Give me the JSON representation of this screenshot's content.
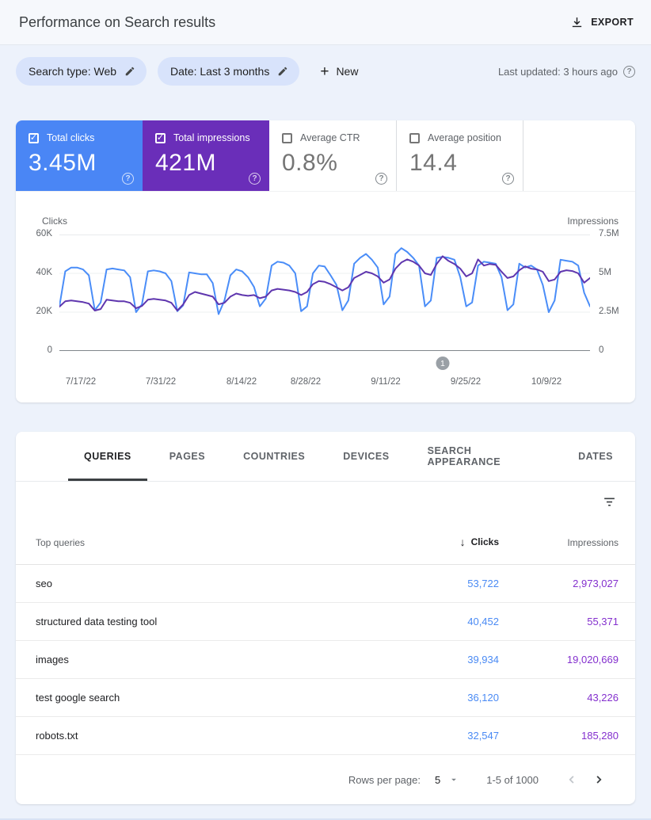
{
  "header": {
    "title": "Performance on Search results",
    "export_label": "EXPORT"
  },
  "filters": {
    "chips": [
      {
        "label": "Search type: Web"
      },
      {
        "label": "Date: Last 3 months"
      }
    ],
    "new_label": "New",
    "last_updated": "Last updated: 3 hours ago"
  },
  "metrics": [
    {
      "label": "Total clicks",
      "value": "3.45M",
      "checked": true,
      "bg": "#4a86f5",
      "fg": "#ffffff"
    },
    {
      "label": "Total impressions",
      "value": "421M",
      "checked": true,
      "bg": "#6a2eb9",
      "fg": "#ffffff"
    },
    {
      "label": "Average CTR",
      "value": "0.8%",
      "checked": false,
      "bg": "#ffffff",
      "fg": "#757575"
    },
    {
      "label": "Average position",
      "value": "14.4",
      "checked": false,
      "bg": "#ffffff",
      "fg": "#757575"
    }
  ],
  "chart_data": {
    "type": "line",
    "left_axis": {
      "label": "Clicks",
      "ticks": [
        "60K",
        "40K",
        "20K",
        "0"
      ],
      "min": 0,
      "max": 60000
    },
    "right_axis": {
      "label": "Impressions",
      "ticks": [
        "7.5M",
        "5M",
        "2.5M",
        "0"
      ],
      "min": 0,
      "max": 7500000
    },
    "x_ticks": [
      "7/17/22",
      "7/31/22",
      "8/14/22",
      "8/28/22",
      "9/11/22",
      "9/25/22",
      "10/9/22"
    ],
    "grid": true,
    "series": [
      {
        "name": "Total clicks",
        "axis": "left",
        "color": "#4a8df8",
        "values": [
          23000,
          41000,
          43000,
          43000,
          42000,
          39000,
          21000,
          25000,
          42000,
          42500,
          42000,
          41500,
          38000,
          20000,
          24000,
          41000,
          41500,
          41000,
          40000,
          36000,
          20500,
          23500,
          40500,
          40000,
          39500,
          39500,
          35000,
          19000,
          26000,
          39000,
          42000,
          41000,
          38000,
          33000,
          23000,
          27000,
          44000,
          46000,
          45500,
          44000,
          40000,
          20500,
          23000,
          40000,
          44000,
          43500,
          39000,
          34000,
          21000,
          26000,
          45000,
          48000,
          50000,
          47000,
          43000,
          24000,
          28000,
          50000,
          53000,
          51000,
          48000,
          44000,
          23000,
          26000,
          48000,
          48500,
          48000,
          47000,
          38000,
          23000,
          25000,
          44000,
          46000,
          45500,
          45000,
          38000,
          21000,
          24000,
          45000,
          43000,
          44000,
          42000,
          34000,
          20000,
          26000,
          47000,
          46500,
          46000,
          44000,
          30000,
          23000
        ]
      },
      {
        "name": "Total impressions",
        "axis": "right",
        "color": "#5f36ae",
        "values": [
          2850000,
          3200000,
          3250000,
          3200000,
          3150000,
          3050000,
          2600000,
          2700000,
          3300000,
          3250000,
          3200000,
          3200000,
          3100000,
          2750000,
          2900000,
          3300000,
          3350000,
          3300000,
          3250000,
          3100000,
          2600000,
          3000000,
          3600000,
          3800000,
          3700000,
          3600000,
          3500000,
          3000000,
          3100000,
          3500000,
          3700000,
          3600000,
          3550000,
          3600000,
          3400000,
          3500000,
          3900000,
          4000000,
          3950000,
          3900000,
          3800000,
          3600000,
          3800000,
          4300000,
          4500000,
          4450000,
          4300000,
          4100000,
          3900000,
          4100000,
          4700000,
          4900000,
          5100000,
          5000000,
          4800000,
          4400000,
          4600000,
          5300000,
          5700000,
          5900000,
          5750000,
          5500000,
          5000000,
          4900000,
          5600000,
          6100000,
          5800000,
          5600000,
          5300000,
          4800000,
          5000000,
          5900000,
          5500000,
          5600000,
          5550000,
          5100000,
          4700000,
          4800000,
          5200000,
          5450000,
          5300000,
          5250000,
          5100000,
          4500000,
          4600000,
          5100000,
          5200000,
          5150000,
          5000000,
          4400000,
          4700000
        ]
      }
    ],
    "marker": {
      "label": "1",
      "index": 65
    }
  },
  "table": {
    "tabs": [
      {
        "label": "QUERIES",
        "active": true
      },
      {
        "label": "PAGES",
        "active": false
      },
      {
        "label": "COUNTRIES",
        "active": false
      },
      {
        "label": "DEVICES",
        "active": false
      },
      {
        "label": "SEARCH APPEARANCE",
        "active": false
      },
      {
        "label": "DATES",
        "active": false
      }
    ],
    "columns": {
      "dimension": "Top queries",
      "clicks": "Clicks",
      "impressions": "Impressions",
      "sort_arrow": "↓"
    },
    "value_colors": {
      "clicks": "#4a8af4",
      "impressions": "#8430ce"
    },
    "rows": [
      {
        "query": "seo",
        "clicks": "53,722",
        "impressions": "2,973,027"
      },
      {
        "query": "structured data testing tool",
        "clicks": "40,452",
        "impressions": "55,371"
      },
      {
        "query": "images",
        "clicks": "39,934",
        "impressions": "19,020,669"
      },
      {
        "query": "test google search",
        "clicks": "36,120",
        "impressions": "43,226"
      },
      {
        "query": "robots.txt",
        "clicks": "32,547",
        "impressions": "185,280"
      }
    ],
    "pagination": {
      "rows_per_page_label": "Rows per page:",
      "rows_per_page": "5",
      "range": "1-5 of 1000"
    }
  }
}
